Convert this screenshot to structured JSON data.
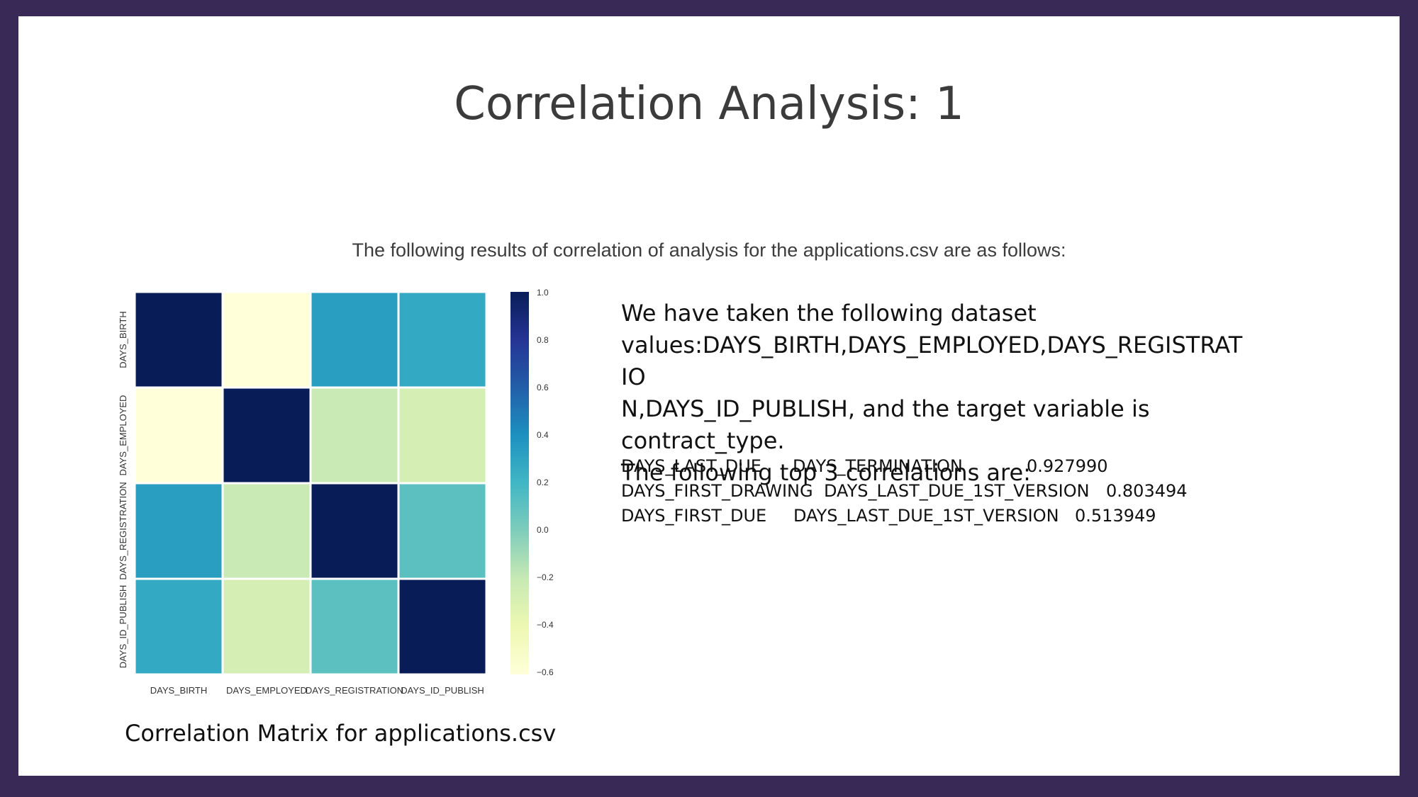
{
  "slide": {
    "title": "Correlation Analysis: 1",
    "subtitle": "The following results of correlation of analysis for the applications.csv are as follows:",
    "caption": "Correlation Matrix for applications.csv",
    "description": [
      "We have taken the following dataset",
      "values:DAYS_BIRTH,DAYS_EMPLOYED,DAYS_REGISTRATIO",
      "N,DAYS_ID_PUBLISH, and the target variable is",
      "contract_type.",
      "The following top 3 correlations are:"
    ],
    "top_correlations": [
      {
        "var1": "DAYS_LAST_DUE",
        "var2": "DAYS_TERMINATION",
        "value": "0.927990"
      },
      {
        "var1": "DAYS_FIRST_DRAWING",
        "var2": "DAYS_LAST_DUE_1ST_VERSION",
        "value": "0.803494"
      },
      {
        "var1": "DAYS_FIRST_DUE",
        "var2": "DAYS_LAST_DUE_1ST_VERSION",
        "value": "0.513949"
      }
    ]
  },
  "colors": {
    "background": "#382957",
    "slide": "#ffffff"
  },
  "chart_data": {
    "type": "heatmap",
    "x_labels": [
      "DAYS_BIRTH",
      "DAYS_EMPLOYED",
      "DAYS_REGISTRATION",
      "DAYS_ID_PUBLISH"
    ],
    "y_labels": [
      "DAYS_BIRTH",
      "DAYS_EMPLOYED",
      "DAYS_REGISTRATION",
      "DAYS_ID_PUBLISH"
    ],
    "values": [
      [
        1.0,
        -0.62,
        0.33,
        0.27
      ],
      [
        -0.62,
        1.0,
        -0.21,
        -0.27
      ],
      [
        0.33,
        -0.21,
        1.0,
        0.11
      ],
      [
        0.27,
        -0.27,
        0.11,
        1.0
      ]
    ],
    "colorbar": {
      "range": [
        -0.6,
        1.0
      ],
      "ticks": [
        "1.0",
        "0.8",
        "0.6",
        "0.4",
        "0.2",
        "0.0",
        "−0.2",
        "−0.4",
        "−0.6"
      ],
      "colormap": "YlGnBu"
    }
  }
}
